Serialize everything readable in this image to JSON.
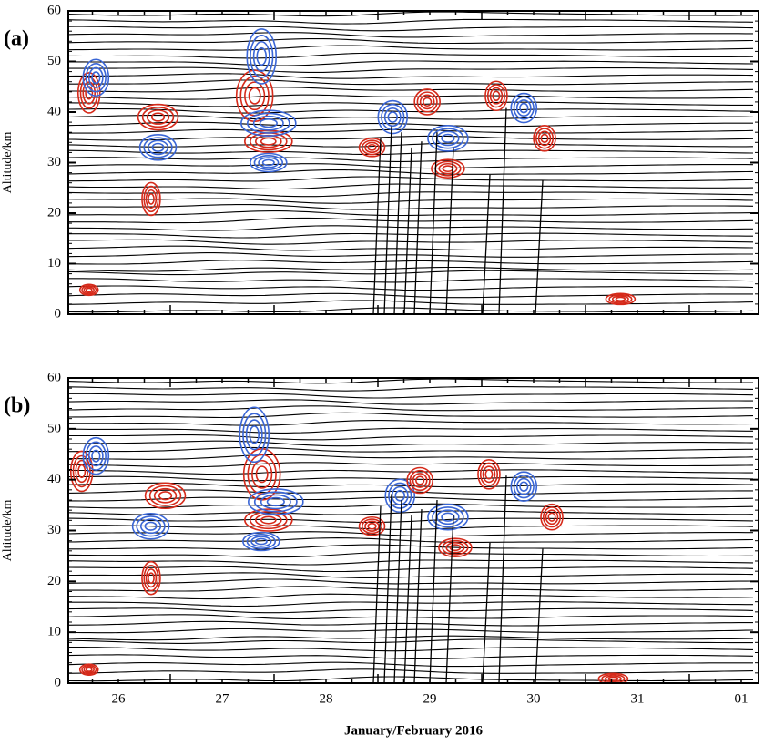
{
  "chart_data": [
    {
      "type": "contour",
      "panel_label": "(a)",
      "ylabel": "Altitude/km",
      "ylim": [
        0,
        60
      ],
      "yticks": [
        0,
        10,
        20,
        30,
        40,
        50,
        60
      ]
    },
    {
      "type": "contour",
      "panel_label": "(b)",
      "ylabel": "Altitude/km",
      "ylim": [
        0,
        60
      ],
      "yticks": [
        0,
        10,
        20,
        30,
        40,
        50,
        60
      ],
      "categories": [
        "26",
        "27",
        "28",
        "29",
        "30",
        "31",
        "01"
      ],
      "xlabel": "January/February 2016"
    }
  ]
}
